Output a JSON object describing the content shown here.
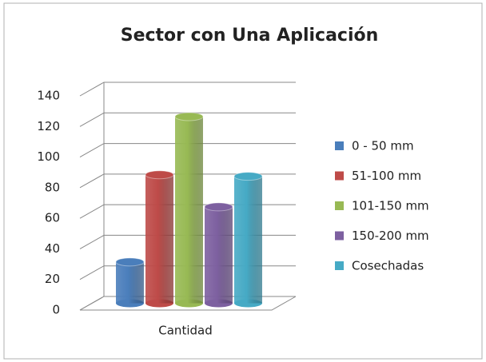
{
  "chart_data": {
    "type": "bar3d",
    "title": "Sector con Una Aplicación",
    "categories": [
      "Cantidad"
    ],
    "series": [
      {
        "name": "0 - 50  mm",
        "color": "#4a7ebb",
        "values": [
          27
        ]
      },
      {
        "name": "51-100 mm",
        "color": "#be4b48",
        "values": [
          84
        ]
      },
      {
        "name": "101-150 mm",
        "color": "#98b954",
        "values": [
          122
        ]
      },
      {
        "name": "150-200 mm",
        "color": "#7d60a0",
        "values": [
          63
        ]
      },
      {
        "name": "Cosechadas",
        "color": "#46aac5",
        "values": [
          83
        ]
      }
    ],
    "ylim": [
      0,
      140
    ],
    "yticks": [
      0,
      20,
      40,
      60,
      80,
      100,
      120,
      140
    ],
    "grid": true,
    "legend": "right"
  }
}
